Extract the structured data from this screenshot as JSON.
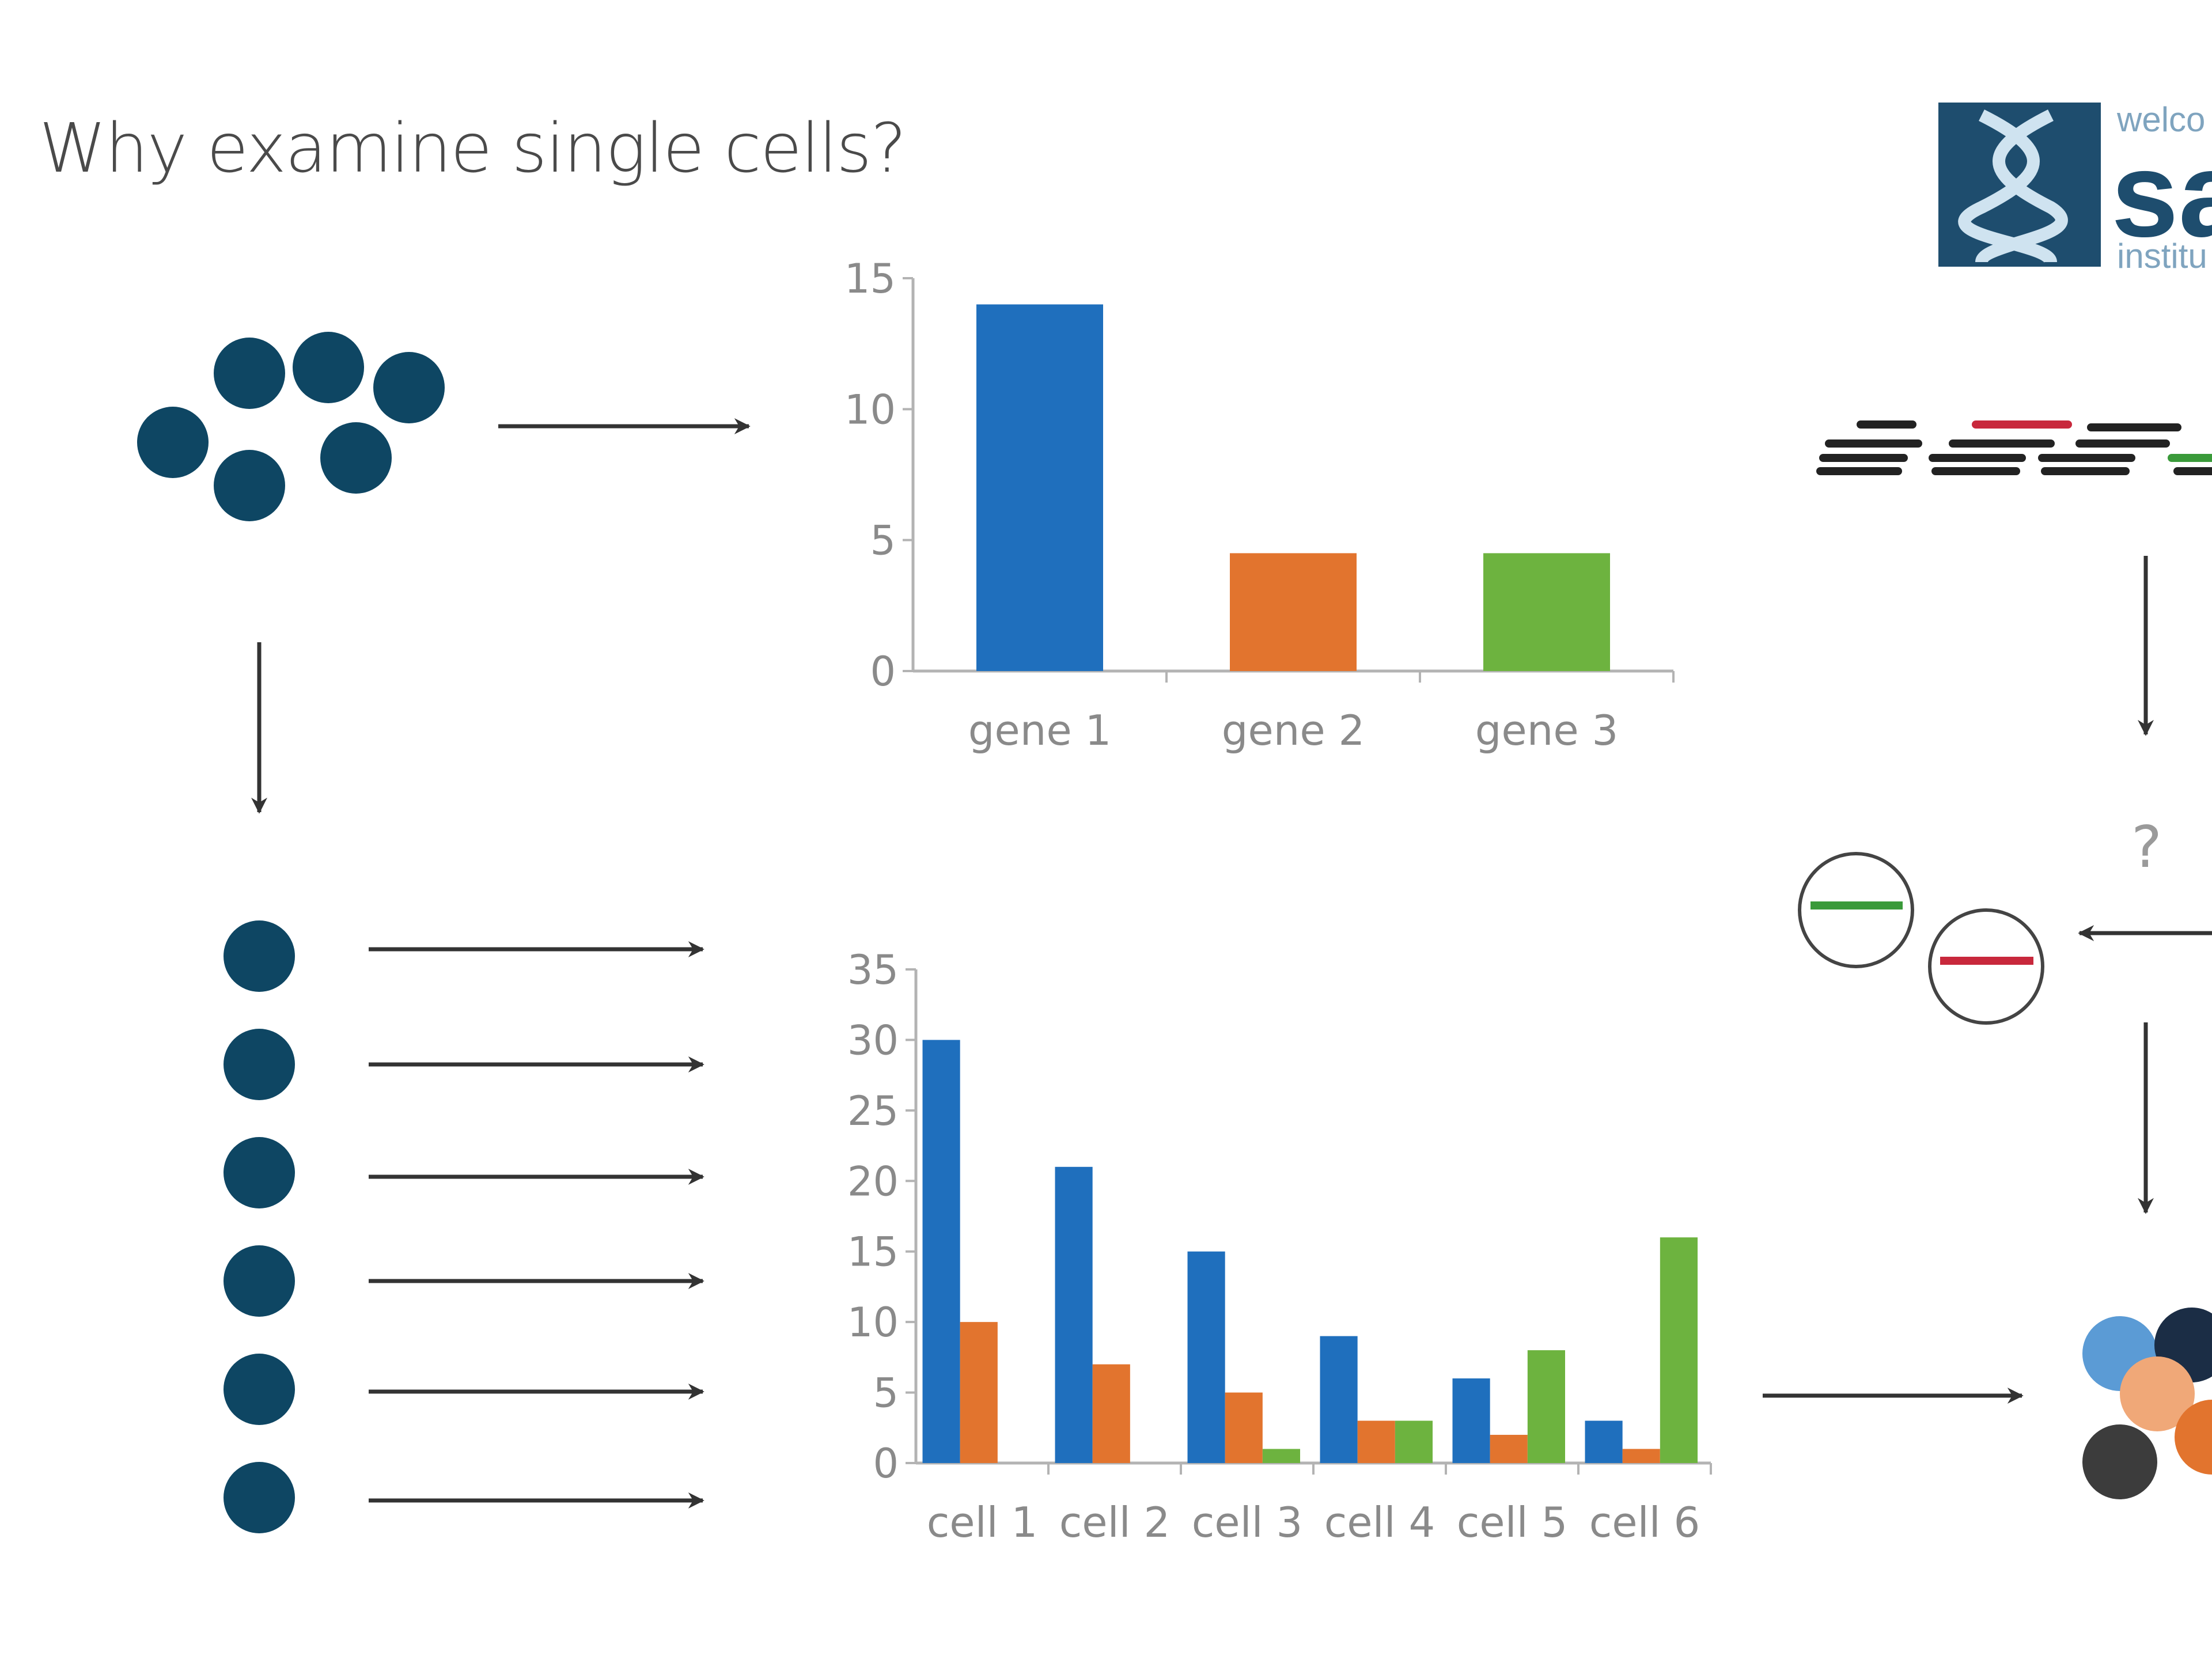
{
  "title": "Why examine single cells?",
  "colors": {
    "cell": "#0e4663",
    "gene1": "#1f6fbd",
    "gene2": "#e2742e",
    "gene3": "#6db33f",
    "arrow": "#333333",
    "axis": "#b3b3b3",
    "read_dark": "#222222",
    "read_red": "#c8283c",
    "read_green": "#3a9a3a",
    "logo_bg": "#1e4d6e"
  },
  "logo": {
    "text_main": "sa",
    "text_top": "welco",
    "text_bottom": "institu"
  },
  "question_mark": "?",
  "chart_data": [
    {
      "type": "bar",
      "title": "",
      "xlabel": "",
      "ylabel": "",
      "categories": [
        "gene 1",
        "gene 2",
        "gene 3"
      ],
      "values": [
        14,
        4.5,
        4.5
      ],
      "ylim": [
        0,
        15
      ],
      "yticks": [
        "0",
        "5",
        "10",
        "15"
      ],
      "grid": false
    },
    {
      "type": "bar",
      "title": "",
      "xlabel": "",
      "ylabel": "",
      "categories": [
        "cell 1",
        "cell 2",
        "cell 3",
        "cell 4",
        "cell 5",
        "cell 6"
      ],
      "series": [
        {
          "values": [
            30,
            21,
            15,
            9,
            6,
            3
          ]
        },
        {
          "values": [
            10,
            7,
            5,
            3,
            2,
            1
          ]
        },
        {
          "values": [
            0,
            0,
            1,
            3,
            8,
            16
          ]
        }
      ],
      "ylim": [
        0,
        35
      ],
      "yticks": [
        "0",
        "5",
        "10",
        "15",
        "20",
        "25",
        "30",
        "35"
      ],
      "grid": false
    }
  ]
}
